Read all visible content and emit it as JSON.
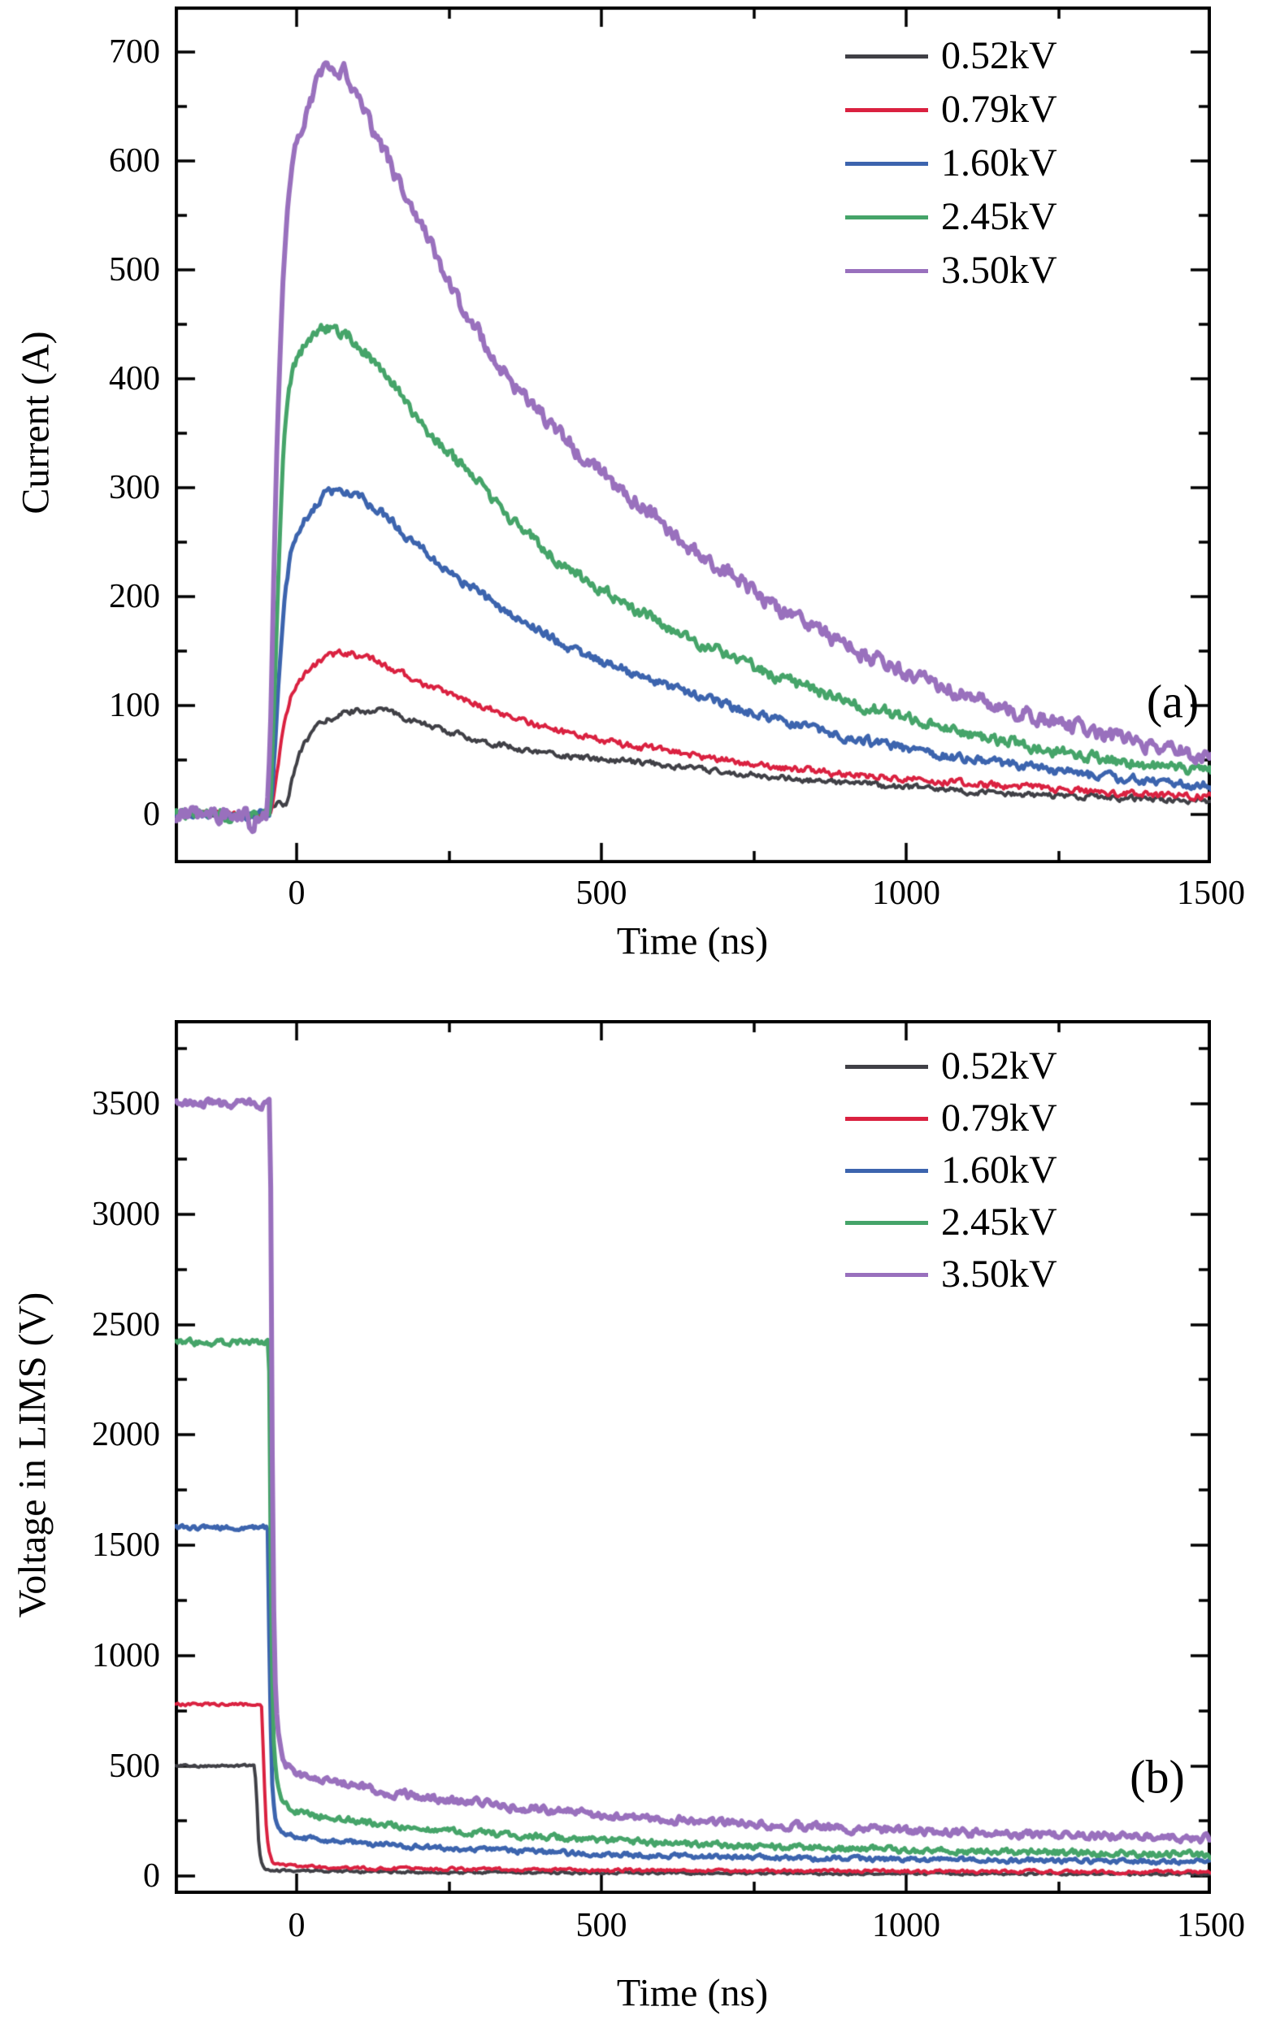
{
  "figure": {
    "background_color": "#ffffff",
    "axis_color": "#000000",
    "text_color": "#000000"
  },
  "chart_data": [
    {
      "id": "a",
      "type": "line",
      "panel_label": "(a)",
      "xlabel": "Time (ns)",
      "ylabel": "Current (A)",
      "xlim": [
        -200,
        1500
      ],
      "ylim": [
        -45,
        742
      ],
      "x_major_ticks": [
        0,
        500,
        1000,
        1500
      ],
      "x_minor_step": 250,
      "y_major_ticks": [
        0,
        100,
        200,
        300,
        400,
        500,
        600,
        700
      ],
      "y_minor_step": 50,
      "grid": false,
      "legend_position": "top-right",
      "series": [
        {
          "name": "0.52kV",
          "color": "#404046",
          "width": 4,
          "noise": 2.2,
          "points": [
            [
              -200,
              0
            ],
            [
              -48,
              0
            ],
            [
              -44,
              8
            ],
            [
              -18,
              10
            ],
            [
              -8,
              30
            ],
            [
              5,
              55
            ],
            [
              30,
              78
            ],
            [
              60,
              89
            ],
            [
              100,
              95
            ],
            [
              140,
              95
            ],
            [
              180,
              88
            ],
            [
              247,
              76
            ],
            [
              300,
              68
            ],
            [
              350,
              62
            ],
            [
              400,
              57
            ],
            [
              450,
              53
            ],
            [
              520,
              49
            ],
            [
              580,
              47
            ],
            [
              650,
              42
            ],
            [
              700,
              39
            ],
            [
              800,
              33
            ],
            [
              900,
              29
            ],
            [
              1000,
              25
            ],
            [
              1100,
              21
            ],
            [
              1200,
              18
            ],
            [
              1300,
              16
            ],
            [
              1400,
              14
            ],
            [
              1500,
              12
            ]
          ]
        },
        {
          "name": "0.79kV",
          "color": "#da2140",
          "width": 4,
          "noise": 2.6,
          "points": [
            [
              -200,
              0
            ],
            [
              -45,
              0
            ],
            [
              -35,
              28
            ],
            [
              -25,
              68
            ],
            [
              -12,
              103
            ],
            [
              0,
              120
            ],
            [
              20,
              133
            ],
            [
              45,
              143
            ],
            [
              70,
              148
            ],
            [
              100,
              146
            ],
            [
              140,
              138
            ],
            [
              200,
              122
            ],
            [
              247,
              111
            ],
            [
              300,
              100
            ],
            [
              350,
              90
            ],
            [
              400,
              81
            ],
            [
              450,
              74
            ],
            [
              520,
              66
            ],
            [
              580,
              60
            ],
            [
              650,
              54
            ],
            [
              700,
              50
            ],
            [
              800,
              43
            ],
            [
              900,
              37
            ],
            [
              1000,
              33
            ],
            [
              1100,
              28
            ],
            [
              1200,
              25
            ],
            [
              1300,
              21
            ],
            [
              1400,
              18
            ],
            [
              1500,
              16
            ]
          ]
        },
        {
          "name": "1.60kV",
          "color": "#3c64ae",
          "width": 5,
          "noise": 3.5,
          "points": [
            [
              -200,
              0
            ],
            [
              -45,
              0
            ],
            [
              -36,
              55
            ],
            [
              -28,
              135
            ],
            [
              -18,
              205
            ],
            [
              -8,
              242
            ],
            [
              5,
              260
            ],
            [
              30,
              283
            ],
            [
              55,
              297
            ],
            [
              90,
              294
            ],
            [
              130,
              281
            ],
            [
              180,
              255
            ],
            [
              247,
              225
            ],
            [
              300,
              203
            ],
            [
              350,
              185
            ],
            [
              400,
              168
            ],
            [
              450,
              153
            ],
            [
              520,
              136
            ],
            [
              580,
              124
            ],
            [
              650,
              110
            ],
            [
              700,
              101
            ],
            [
              800,
              85
            ],
            [
              900,
              71
            ],
            [
              1000,
              60
            ],
            [
              1100,
              51
            ],
            [
              1200,
              43
            ],
            [
              1300,
              36
            ],
            [
              1400,
              30
            ],
            [
              1500,
              26
            ]
          ]
        },
        {
          "name": "2.45kV",
          "color": "#45a469",
          "width": 5,
          "noise": 4.5,
          "points": [
            [
              -200,
              0
            ],
            [
              -45,
              0
            ],
            [
              -38,
              85
            ],
            [
              -30,
              215
            ],
            [
              -22,
              325
            ],
            [
              -12,
              392
            ],
            [
              0,
              418
            ],
            [
              25,
              438
            ],
            [
              50,
              446
            ],
            [
              80,
              441
            ],
            [
              120,
              421
            ],
            [
              160,
              396
            ],
            [
              200,
              362
            ],
            [
              247,
              333
            ],
            [
              300,
              305
            ],
            [
              350,
              272
            ],
            [
              400,
              247
            ],
            [
              450,
              225
            ],
            [
              520,
              199
            ],
            [
              580,
              181
            ],
            [
              650,
              160
            ],
            [
              700,
              148
            ],
            [
              800,
              124
            ],
            [
              900,
              105
            ],
            [
              1000,
              88
            ],
            [
              1100,
              74
            ],
            [
              1200,
              63
            ],
            [
              1300,
              53
            ],
            [
              1400,
              45
            ],
            [
              1500,
              38
            ]
          ]
        },
        {
          "name": "3.50kV",
          "color": "#9970bd",
          "width": 6,
          "noise": 6,
          "points": [
            [
              -200,
              0
            ],
            [
              -85,
              0
            ],
            [
              -76,
              -12
            ],
            [
              -66,
              -4
            ],
            [
              -50,
              0
            ],
            [
              -44,
              60
            ],
            [
              -38,
              200
            ],
            [
              -30,
              380
            ],
            [
              -22,
              500
            ],
            [
              -14,
              560
            ],
            [
              0,
              612
            ],
            [
              25,
              660
            ],
            [
              50,
              684
            ],
            [
              75,
              684
            ],
            [
              100,
              662
            ],
            [
              140,
              612
            ],
            [
              200,
              548
            ],
            [
              247,
              490
            ],
            [
              300,
              442
            ],
            [
              350,
              400
            ],
            [
              400,
              368
            ],
            [
              450,
              340
            ],
            [
              520,
              302
            ],
            [
              580,
              276
            ],
            [
              650,
              243
            ],
            [
              700,
              223
            ],
            [
              800,
              186
            ],
            [
              900,
              156
            ],
            [
              1000,
              130
            ],
            [
              1100,
              109
            ],
            [
              1200,
              91
            ],
            [
              1300,
              76
            ],
            [
              1400,
              64
            ],
            [
              1500,
              53
            ]
          ]
        }
      ]
    },
    {
      "id": "b",
      "type": "line",
      "panel_label": "(b)",
      "xlabel": "Time (ns)",
      "ylabel": "Voltage in LIMS (V)",
      "xlim": [
        -200,
        1500
      ],
      "ylim": [
        -80,
        3880
      ],
      "x_major_ticks": [
        0,
        500,
        1000,
        1500
      ],
      "x_minor_step": 250,
      "y_major_ticks": [
        0,
        500,
        1000,
        1500,
        2000,
        2500,
        3000,
        3500
      ],
      "y_minor_step": 250,
      "grid": false,
      "legend_position": "top-right",
      "series": [
        {
          "name": "0.52kV",
          "color": "#404046",
          "width": 4,
          "noise": 4.5,
          "points": [
            [
              -200,
              500
            ],
            [
              -70,
              500
            ],
            [
              -66,
              380
            ],
            [
              -62,
              150
            ],
            [
              -58,
              70
            ],
            [
              -52,
              38
            ],
            [
              -40,
              28
            ],
            [
              -20,
              25
            ],
            [
              0,
              24
            ],
            [
              100,
              21
            ],
            [
              300,
              18
            ],
            [
              600,
              15
            ],
            [
              1000,
              12
            ],
            [
              1500,
              10
            ]
          ]
        },
        {
          "name": "0.79kV",
          "color": "#da2140",
          "width": 4,
          "noise": 6,
          "points": [
            [
              -200,
              778
            ],
            [
              -58,
              778
            ],
            [
              -54,
              500
            ],
            [
              -50,
              230
            ],
            [
              -45,
              110
            ],
            [
              -38,
              62
            ],
            [
              -25,
              48
            ],
            [
              0,
              44
            ],
            [
              100,
              38
            ],
            [
              300,
              32
            ],
            [
              600,
              27
            ],
            [
              1000,
              23
            ],
            [
              1500,
              20
            ]
          ]
        },
        {
          "name": "1.60kV",
          "color": "#3c64ae",
          "width": 5,
          "noise": 9,
          "points": [
            [
              -200,
              1580
            ],
            [
              -48,
              1580
            ],
            [
              -44,
              900
            ],
            [
              -40,
              420
            ],
            [
              -34,
              260
            ],
            [
              -26,
              205
            ],
            [
              -10,
              185
            ],
            [
              0,
              178
            ],
            [
              100,
              152
            ],
            [
              200,
              133
            ],
            [
              300,
              120
            ],
            [
              450,
              105
            ],
            [
              600,
              94
            ],
            [
              800,
              84
            ],
            [
              1000,
              77
            ],
            [
              1200,
              72
            ],
            [
              1500,
              66
            ]
          ]
        },
        {
          "name": "2.45kV",
          "color": "#45a469",
          "width": 5,
          "noise": 12,
          "points": [
            [
              -200,
              2420
            ],
            [
              -46,
              2420
            ],
            [
              -42,
              1300
            ],
            [
              -38,
              640
            ],
            [
              -30,
              400
            ],
            [
              -20,
              330
            ],
            [
              0,
              295
            ],
            [
              100,
              250
            ],
            [
              200,
              220
            ],
            [
              300,
              198
            ],
            [
              450,
              172
            ],
            [
              600,
              152
            ],
            [
              800,
              133
            ],
            [
              1000,
              119
            ],
            [
              1200,
              109
            ],
            [
              1500,
              98
            ]
          ]
        },
        {
          "name": "3.50kV",
          "color": "#9970bd",
          "width": 6,
          "noise": 15,
          "points": [
            [
              -200,
              3500
            ],
            [
              -44,
              3500
            ],
            [
              -40,
              1900
            ],
            [
              -36,
              950
            ],
            [
              -28,
              600
            ],
            [
              -18,
              510
            ],
            [
              0,
              470
            ],
            [
              100,
              405
            ],
            [
              200,
              360
            ],
            [
              300,
              330
            ],
            [
              450,
              292
            ],
            [
              600,
              262
            ],
            [
              800,
              230
            ],
            [
              1000,
              206
            ],
            [
              1200,
              190
            ],
            [
              1500,
              172
            ]
          ]
        }
      ]
    }
  ]
}
